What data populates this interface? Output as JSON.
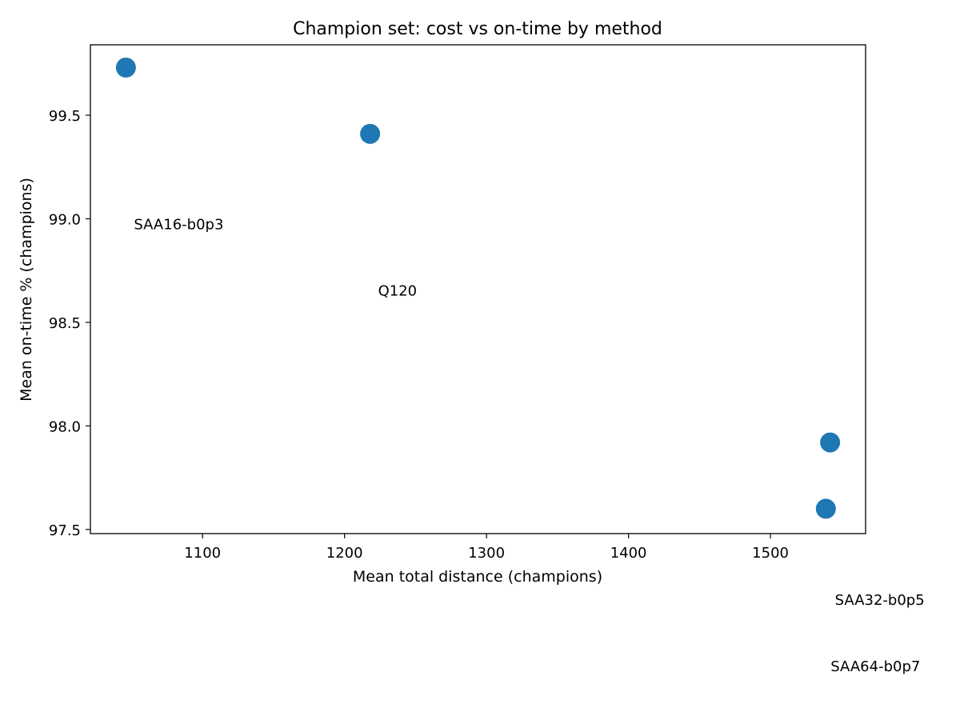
{
  "chart_data": {
    "type": "scatter",
    "title": "Champion set: cost vs on-time by method",
    "xlabel": "Mean total distance (champions)",
    "ylabel": "Mean on-time % (champions)",
    "xlim": [
      1021,
      1567
    ],
    "ylim": [
      97.48,
      99.84
    ],
    "xticks": [
      1100,
      1200,
      1300,
      1400,
      1500
    ],
    "yticks": [
      97.5,
      98.0,
      98.5,
      99.0,
      99.5
    ],
    "grid": false,
    "marker_color": "#1f77b4",
    "points": [
      {
        "label": "SAA16-b0p3",
        "x": 1046,
        "y": 99.73
      },
      {
        "label": "Q120",
        "x": 1218,
        "y": 99.41
      },
      {
        "label": "SAA32-b0p5",
        "x": 1542,
        "y": 97.92
      },
      {
        "label": "SAA64-b0p7",
        "x": 1539,
        "y": 97.6
      }
    ]
  }
}
